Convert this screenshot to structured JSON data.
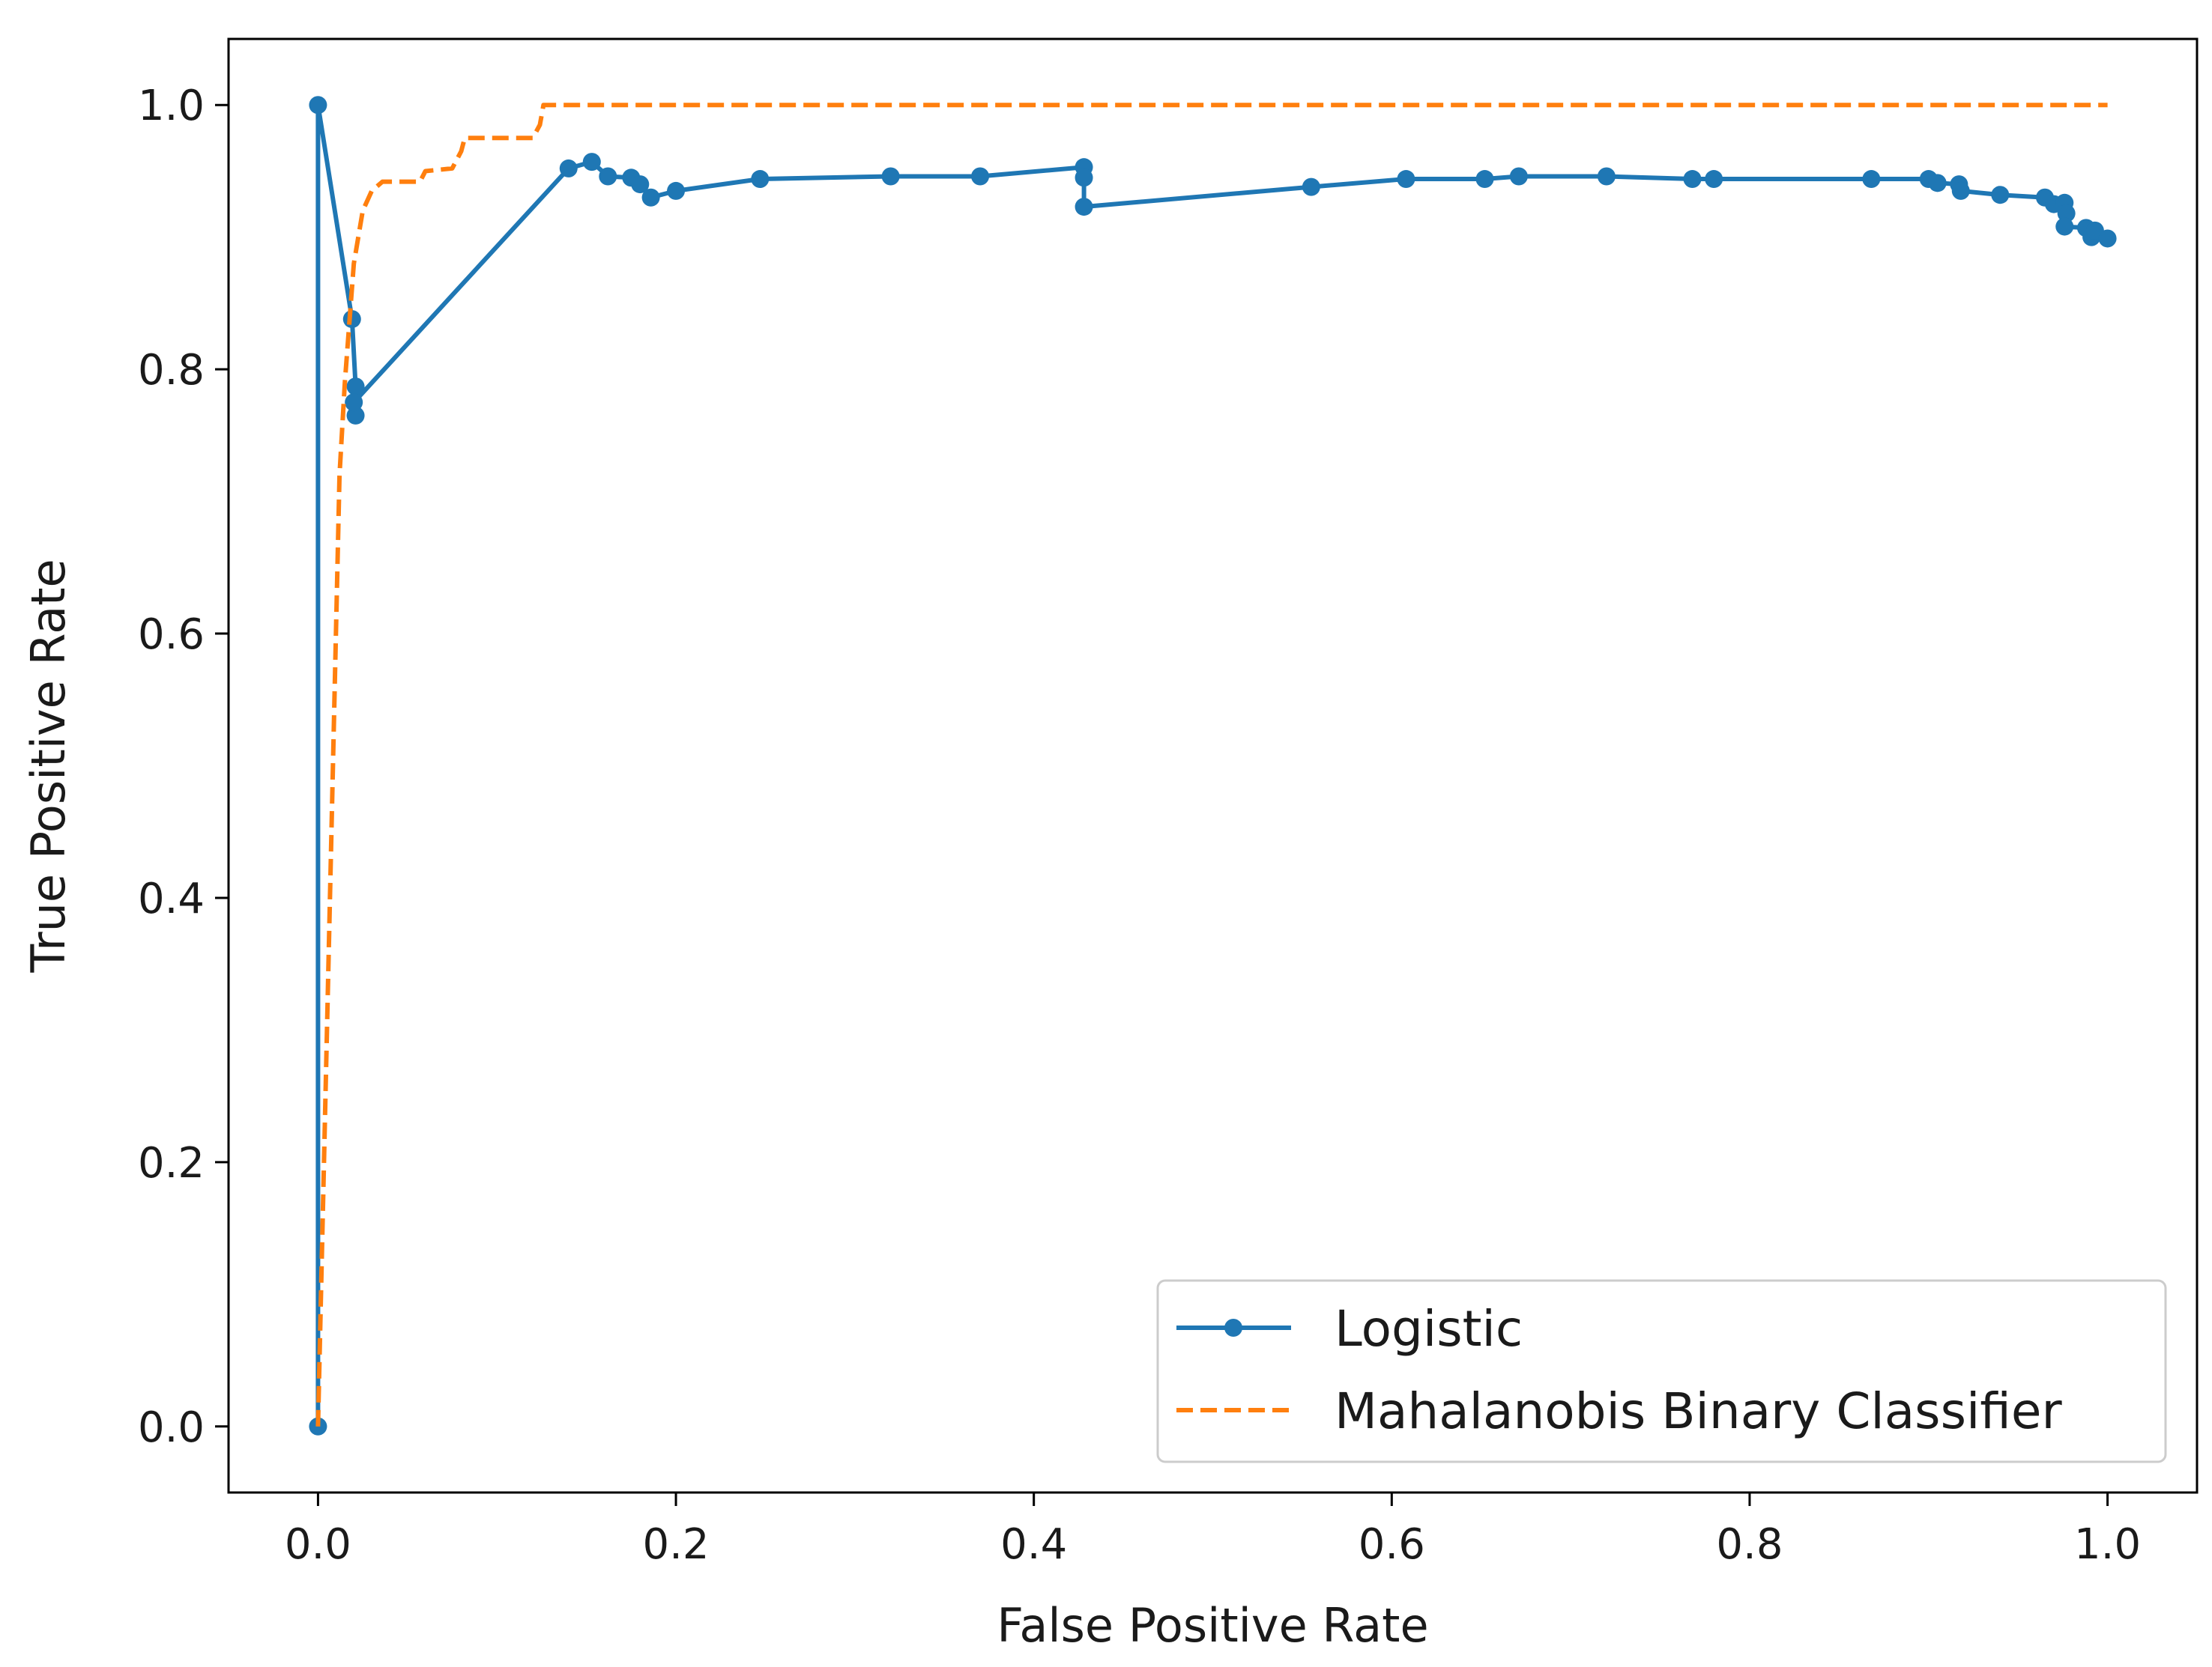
{
  "chart_data": {
    "type": "line",
    "xlabel": "False Positive Rate",
    "ylabel": "True Positive Rate",
    "xlim": [
      -0.05,
      1.05
    ],
    "ylim": [
      -0.05,
      1.05
    ],
    "xticks": [
      0.0,
      0.2,
      0.4,
      0.6,
      0.8,
      1.0
    ],
    "xtick_labels": [
      "0.0",
      "0.2",
      "0.4",
      "0.6",
      "0.8",
      "1.0"
    ],
    "yticks": [
      0.0,
      0.2,
      0.4,
      0.6,
      0.8,
      1.0
    ],
    "ytick_labels": [
      "0.0",
      "0.2",
      "0.4",
      "0.6",
      "0.8",
      "1.0"
    ],
    "grid": false,
    "legend": {
      "placement": "lower-right"
    },
    "series": [
      {
        "name": "Logistic",
        "color": "#1f77b4",
        "style": "solid",
        "marker": "circle",
        "x": [
          0.0,
          0.0,
          0.019,
          0.021,
          0.021,
          0.02,
          0.14,
          0.153,
          0.162,
          0.175,
          0.18,
          0.186,
          0.2,
          0.247,
          0.32,
          0.37,
          0.428,
          0.428,
          0.428,
          0.555,
          0.608,
          0.652,
          0.671,
          0.72,
          0.768,
          0.78,
          0.868,
          0.9,
          0.905,
          0.917,
          0.918,
          0.94,
          0.965,
          0.97,
          0.976,
          0.977,
          0.976,
          0.988,
          0.991,
          0.993,
          1.0
        ],
        "y": [
          0.0,
          1.0,
          0.838,
          0.787,
          0.765,
          0.775,
          0.952,
          0.957,
          0.946,
          0.945,
          0.94,
          0.93,
          0.935,
          0.944,
          0.946,
          0.946,
          0.953,
          0.945,
          0.923,
          0.938,
          0.944,
          0.944,
          0.946,
          0.946,
          0.944,
          0.944,
          0.944,
          0.944,
          0.941,
          0.94,
          0.935,
          0.932,
          0.93,
          0.925,
          0.926,
          0.918,
          0.908,
          0.907,
          0.9,
          0.905,
          0.899
        ]
      },
      {
        "name": "Mahalanobis Binary Classifier",
        "color": "#ff7f0e",
        "style": "dashed",
        "marker": "none",
        "x": [
          0.0,
          0.012,
          0.015,
          0.02,
          0.025,
          0.03,
          0.036,
          0.042,
          0.057,
          0.06,
          0.075,
          0.08,
          0.082,
          0.12,
          0.124,
          0.126,
          1.0
        ],
        "y": [
          0.0,
          0.72,
          0.79,
          0.88,
          0.92,
          0.935,
          0.942,
          0.942,
          0.942,
          0.95,
          0.952,
          0.965,
          0.975,
          0.975,
          0.985,
          1.0,
          1.0
        ]
      }
    ]
  }
}
